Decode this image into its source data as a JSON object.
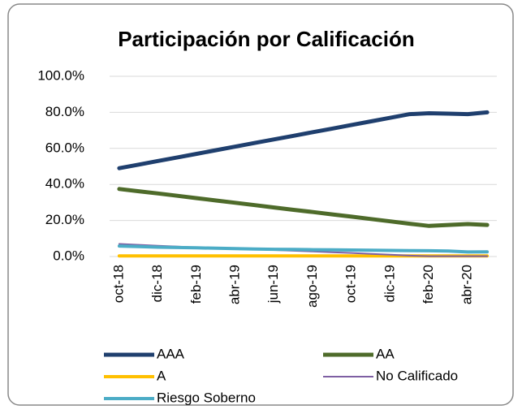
{
  "chart_data": {
    "type": "line",
    "title": "Participación por Calificación",
    "categories": [
      "oct-18",
      null,
      "dic-18",
      null,
      "feb-19",
      null,
      "abr-19",
      null,
      "jun-19",
      null,
      "ago-19",
      null,
      "oct-19",
      null,
      "dic-19",
      null,
      "feb-20",
      null,
      "abr-20",
      null
    ],
    "series": [
      {
        "name": "AAA",
        "color": "#1f3f6e",
        "values": [
          49,
          51,
          53,
          55,
          57,
          59,
          61,
          63,
          65,
          67,
          69,
          71,
          73,
          75,
          77,
          79,
          79.5,
          79.3,
          79,
          80
        ]
      },
      {
        "name": "AA",
        "color": "#4e6b2a",
        "values": [
          37.5,
          36.2,
          35,
          33.7,
          32.4,
          31.1,
          29.8,
          28.5,
          27.2,
          25.9,
          24.7,
          23.4,
          22.1,
          20.8,
          19.5,
          18.2,
          17,
          17.5,
          18,
          17.5
        ]
      },
      {
        "name": "A",
        "color": "#ffc000",
        "values": [
          0.3,
          0.3,
          0.3,
          0.3,
          0.3,
          0.3,
          0.3,
          0.3,
          0.3,
          0.3,
          0.3,
          0.3,
          0.3,
          0.3,
          0.3,
          0.3,
          0.3,
          0.3,
          0.3,
          0.3
        ]
      },
      {
        "name": "No Calificado",
        "color": "#7e5fa3",
        "values": [
          7,
          6.5,
          6,
          5.5,
          5,
          4.7,
          4.4,
          4,
          3.6,
          3.2,
          2.8,
          2.4,
          2,
          1.5,
          1,
          0.5,
          0.2,
          0.2,
          0.2,
          0.2
        ]
      },
      {
        "name": "Riesgo Soberno",
        "color": "#4bacc6",
        "values": [
          5.8,
          5.5,
          5.2,
          5,
          4.8,
          4.6,
          4.4,
          4.2,
          4,
          3.9,
          3.8,
          3.7,
          3.6,
          3.5,
          3.4,
          3.3,
          3.2,
          3,
          2.5,
          2.6
        ]
      }
    ],
    "ylim": [
      0,
      100
    ],
    "yticks": [
      {
        "value": 0,
        "label": "0.0%"
      },
      {
        "value": 20,
        "label": "20.0%"
      },
      {
        "value": 40,
        "label": "40.0%"
      },
      {
        "value": 60,
        "label": "60.0%"
      },
      {
        "value": 80,
        "label": "80.0%"
      },
      {
        "value": 100,
        "label": "100.0%"
      }
    ],
    "legend": "bottom"
  }
}
